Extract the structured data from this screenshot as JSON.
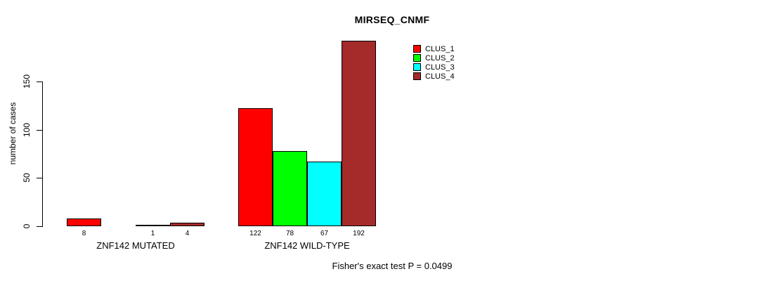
{
  "chart_data": {
    "type": "bar",
    "title": "MIRSEQ_CNMF",
    "ylabel": "number of cases",
    "ylim": [
      0,
      200
    ],
    "yticks": [
      0,
      50,
      100,
      150
    ],
    "grid": false,
    "legend_position": "top-right",
    "categories": [
      "ZNF142 MUTATED",
      "ZNF142 WILD-TYPE"
    ],
    "series": [
      {
        "name": "CLUS_1",
        "color": "#ff0000",
        "values": [
          8,
          122
        ]
      },
      {
        "name": "CLUS_2",
        "color": "#00ff00",
        "values": [
          0,
          78
        ]
      },
      {
        "name": "CLUS_3",
        "color": "#00ffff",
        "values": [
          1,
          67
        ]
      },
      {
        "name": "CLUS_4",
        "color": "#a52a2a",
        "values": [
          4,
          192
        ]
      }
    ],
    "bar_value_labels": [
      [
        "8",
        "",
        "1",
        "4"
      ],
      [
        "122",
        "78",
        "67",
        "192"
      ]
    ],
    "footnote": "Fisher's exact test P = 0.0499"
  },
  "colors": {
    "background": "#ffffff",
    "axis": "#000000",
    "text": "#000000",
    "bar_border": "#000000"
  }
}
